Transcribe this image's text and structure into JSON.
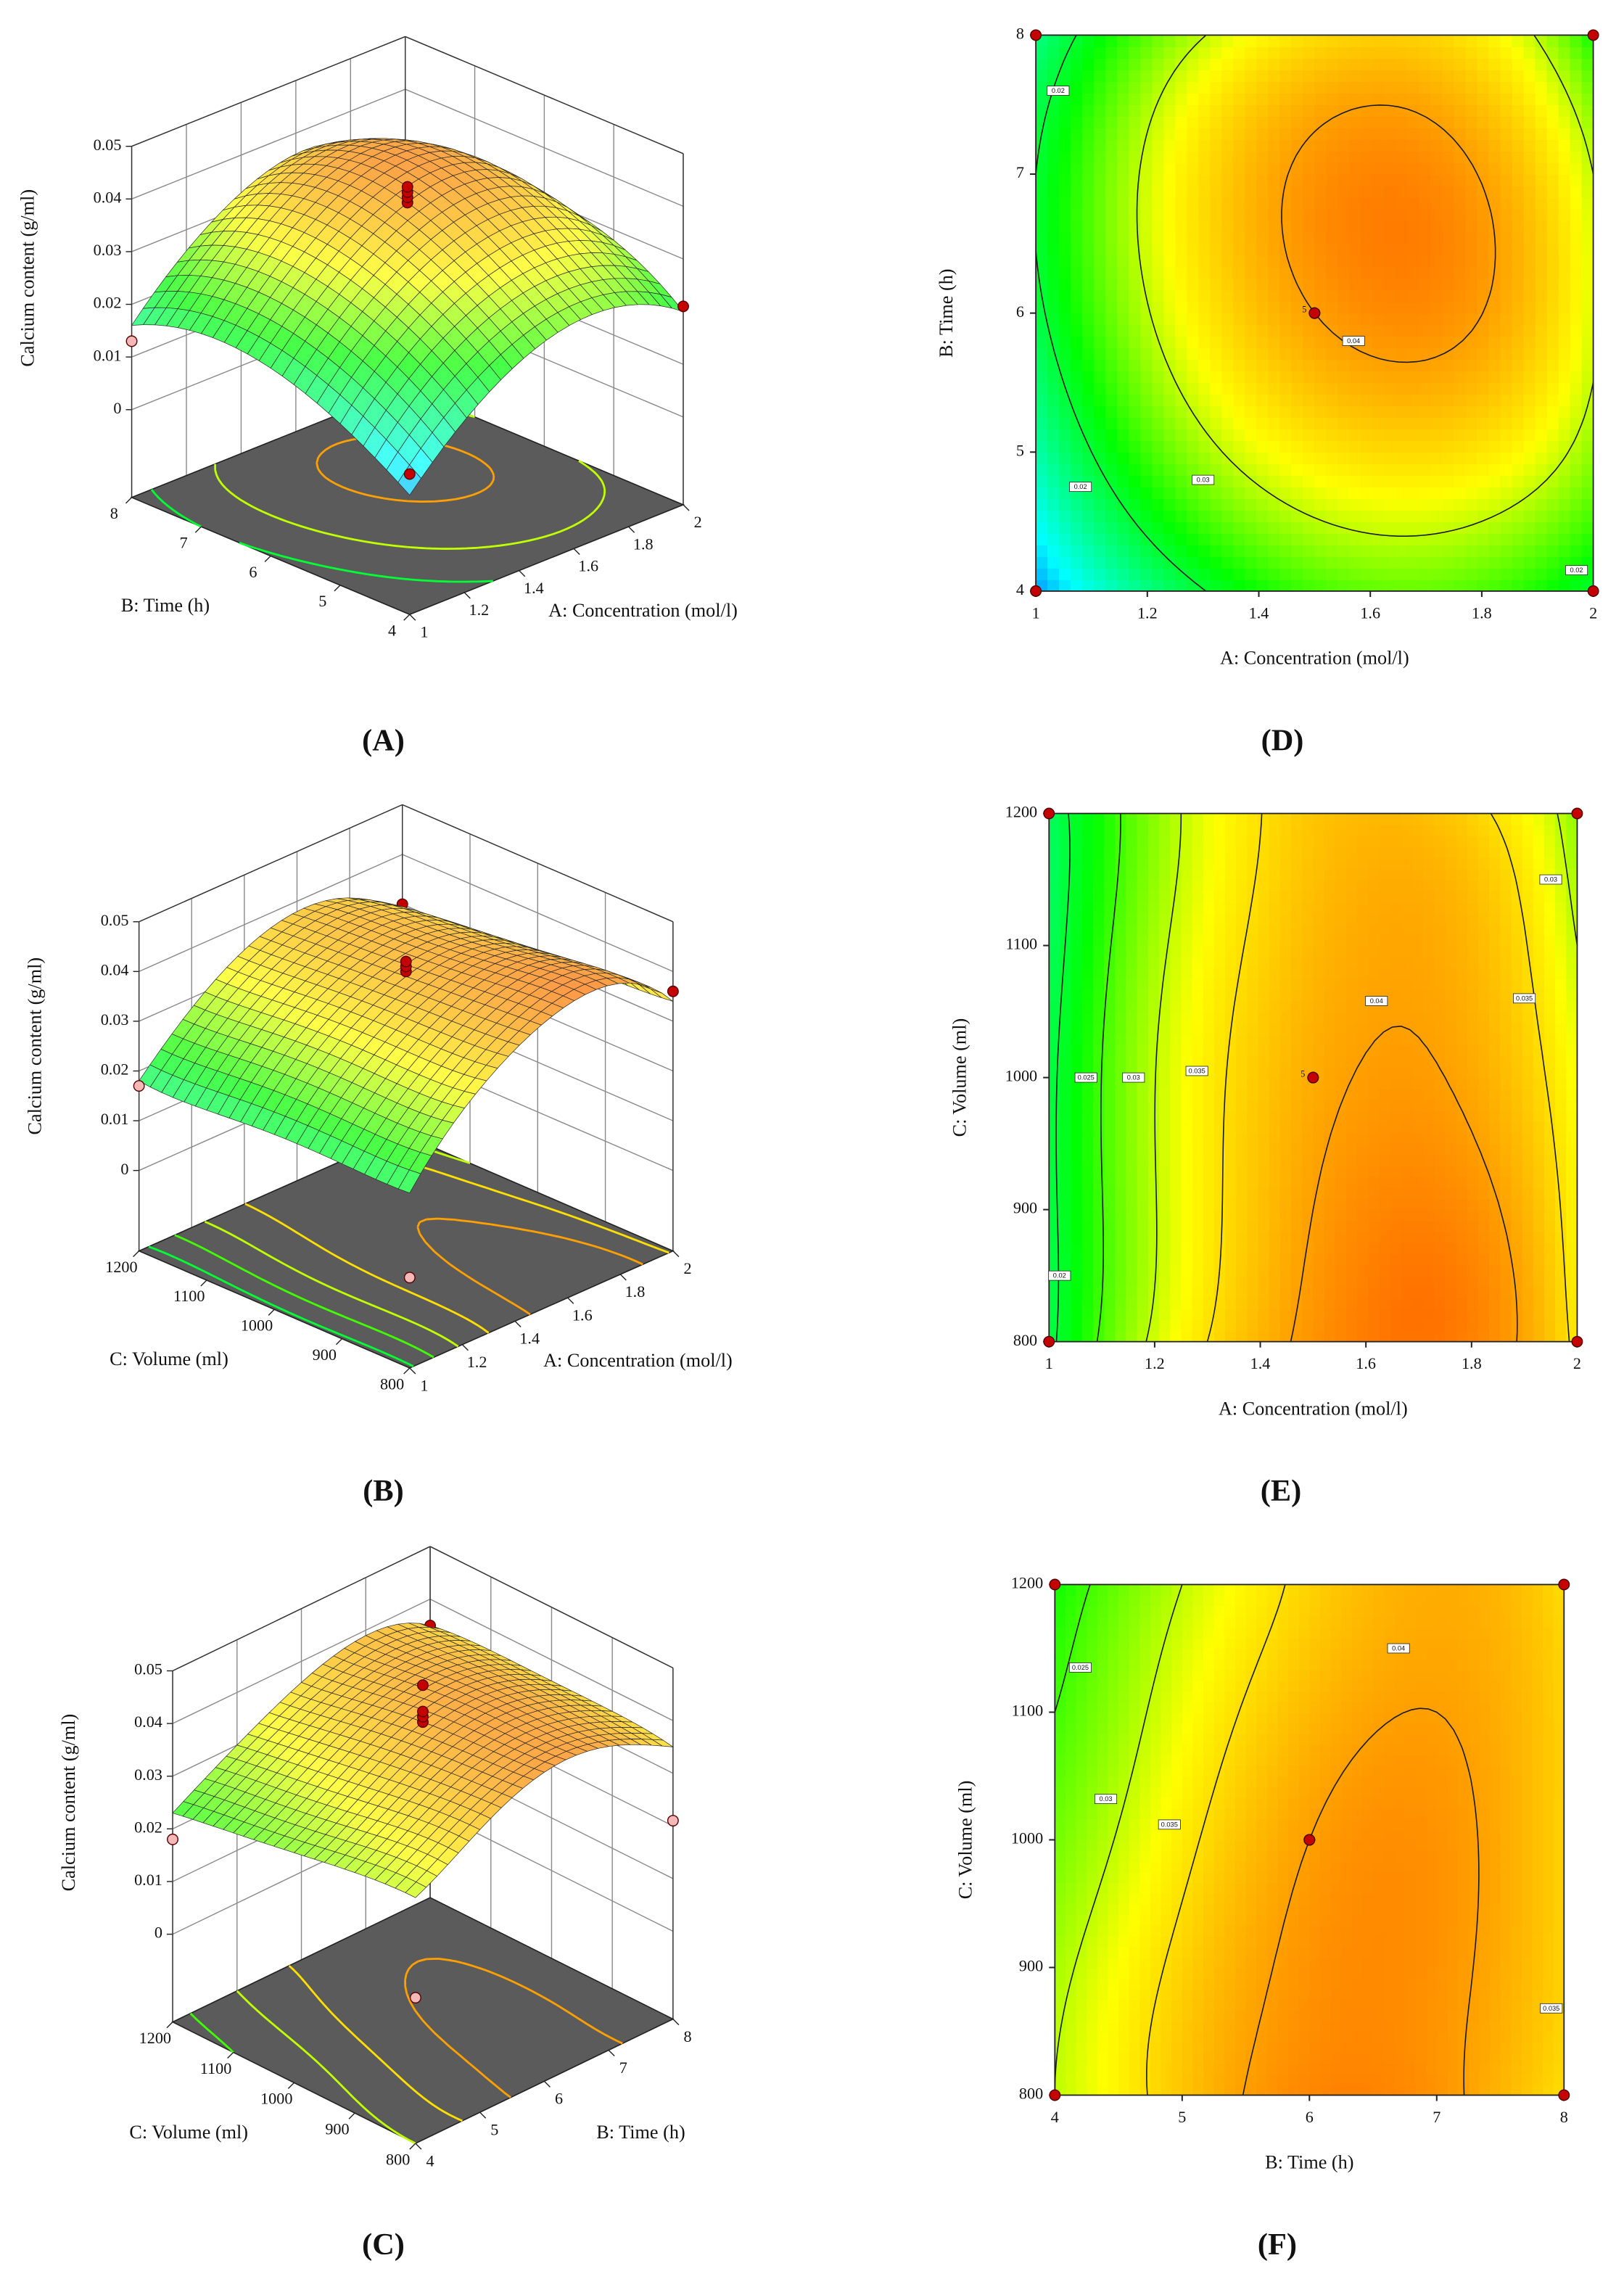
{
  "chart_data": [
    {
      "type": "surface",
      "panel_label": "(A)",
      "x_label": "A: Concentration (mol/l)",
      "y_label": "B: Time (h)",
      "z_label": "Calcium content (g/ml)",
      "xlim": [
        1,
        2
      ],
      "xticks": [
        1,
        1.2,
        1.4,
        1.6,
        1.8,
        2
      ],
      "ylim": [
        4,
        8
      ],
      "yticks": [
        4,
        5,
        6,
        7,
        8
      ],
      "zlim": [
        0,
        0.05
      ],
      "zticks": [
        0,
        0.01,
        0.02,
        0.03,
        0.04,
        0.05
      ],
      "grid_x": [
        1,
        1.25,
        1.5,
        1.75,
        2
      ],
      "grid_y": [
        4,
        5,
        6,
        7,
        8
      ],
      "z": [
        [
          0.006,
          0.018,
          0.025,
          0.026,
          0.02
        ],
        [
          0.014,
          0.027,
          0.034,
          0.035,
          0.028
        ],
        [
          0.019,
          0.032,
          0.04,
          0.041,
          0.031
        ],
        [
          0.02,
          0.033,
          0.041,
          0.041,
          0.03
        ],
        [
          0.016,
          0.028,
          0.035,
          0.035,
          0.023
        ]
      ],
      "points": {
        "x": [
          1.5,
          1.5,
          1.5,
          1.5,
          1,
          1,
          2,
          2
        ],
        "y": [
          6,
          6,
          6,
          6,
          4,
          8,
          4,
          8
        ],
        "z": [
          0.04,
          0.041,
          0.042,
          0.043,
          0.01,
          0.013,
          0.021,
          0.02
        ]
      }
    },
    {
      "type": "surface",
      "panel_label": "(B)",
      "x_label": "A: Concentration (mol/l)",
      "y_label": "C: Volume (ml)",
      "z_label": "Calcium content (g/ml)",
      "xlim": [
        1,
        2
      ],
      "xticks": [
        1,
        1.2,
        1.4,
        1.6,
        1.8,
        2
      ],
      "ylim": [
        800,
        1200
      ],
      "yticks": [
        800,
        900,
        1000,
        1100,
        1200
      ],
      "zlim": [
        0,
        0.05
      ],
      "zticks": [
        0,
        0.01,
        0.02,
        0.03,
        0.04,
        0.05
      ],
      "grid_x": [
        1,
        1.25,
        1.5,
        1.75,
        2
      ],
      "grid_y": [
        800,
        900,
        1000,
        1100,
        1200
      ],
      "z": [
        [
          0.019,
          0.033,
          0.041,
          0.043,
          0.034
        ],
        [
          0.019,
          0.032,
          0.04,
          0.042,
          0.033
        ],
        [
          0.019,
          0.032,
          0.039,
          0.04,
          0.032
        ],
        [
          0.018,
          0.031,
          0.038,
          0.039,
          0.03
        ],
        [
          0.018,
          0.03,
          0.037,
          0.037,
          0.028
        ]
      ],
      "points": {
        "x": [
          1.5,
          1.5,
          1.5,
          1,
          1,
          2,
          2
        ],
        "y": [
          1000,
          1000,
          1000,
          800,
          1200,
          800,
          1200
        ],
        "z": [
          0.04,
          0.041,
          0.042,
          0.002,
          0.017,
          0.036,
          0.03
        ]
      }
    },
    {
      "type": "surface",
      "panel_label": "(C)",
      "x_label": "B: Time (h)",
      "y_label": "C: Volume (ml)",
      "z_label": "Calcium content (g/ml)",
      "xlim": [
        4,
        8
      ],
      "xticks": [
        4,
        5,
        6,
        7,
        8
      ],
      "ylim": [
        800,
        1200
      ],
      "yticks": [
        800,
        900,
        1000,
        1100,
        1200
      ],
      "zlim": [
        0,
        0.05
      ],
      "zticks": [
        0,
        0.01,
        0.02,
        0.03,
        0.04,
        0.05
      ],
      "grid_x": [
        4,
        5,
        6,
        7,
        8
      ],
      "grid_y": [
        800,
        900,
        1000,
        1100,
        1200
      ],
      "z": [
        [
          0.03,
          0.037,
          0.042,
          0.041,
          0.035
        ],
        [
          0.029,
          0.036,
          0.041,
          0.041,
          0.036
        ],
        [
          0.027,
          0.034,
          0.04,
          0.041,
          0.036
        ],
        [
          0.025,
          0.032,
          0.038,
          0.04,
          0.036
        ],
        [
          0.023,
          0.03,
          0.036,
          0.039,
          0.035
        ]
      ],
      "points": {
        "x": [
          6,
          6,
          6,
          6,
          4,
          4,
          8,
          8
        ],
        "y": [
          1000,
          1000,
          1000,
          1000,
          800,
          1200,
          800,
          1200
        ],
        "z": [
          0.04,
          0.041,
          0.042,
          0.047,
          0.011,
          0.018,
          0.021,
          0.035
        ]
      }
    },
    {
      "type": "contour",
      "panel_label": "(D)",
      "x_label": "A: Concentration (mol/l)",
      "y_label": "B: Time (h)",
      "xlim": [
        1,
        2
      ],
      "xticks": [
        1,
        1.2,
        1.4,
        1.6,
        1.8,
        2
      ],
      "ylim": [
        4,
        8
      ],
      "yticks": [
        4,
        5,
        6,
        7,
        8
      ],
      "levels": [
        0.02,
        0.03,
        0.04
      ],
      "contour_labels": {
        "values": [
          0.02,
          0.02,
          0.03,
          0.04,
          0.02
        ],
        "x": [
          1.04,
          1.08,
          1.3,
          1.57,
          1.97
        ],
        "y": [
          7.6,
          4.75,
          4.8,
          5.8,
          4.15
        ]
      },
      "replicate_label": "5"
    },
    {
      "type": "contour",
      "panel_label": "(E)",
      "x_label": "A: Concentration (mol/l)",
      "y_label": "C: Volume (ml)",
      "xlim": [
        1,
        2
      ],
      "xticks": [
        1,
        1.2,
        1.4,
        1.6,
        1.8,
        2
      ],
      "ylim": [
        800,
        1200
      ],
      "yticks": [
        800,
        900,
        1000,
        1100,
        1200
      ],
      "levels": [
        0.02,
        0.025,
        0.03,
        0.035,
        0.04
      ],
      "contour_labels": {
        "values": [
          0.025,
          0.03,
          0.035,
          0.04,
          0.035,
          0.03,
          0.02
        ],
        "x": [
          1.07,
          1.16,
          1.28,
          1.62,
          1.9,
          1.95,
          1.02
        ],
        "y": [
          1000,
          1000,
          1005,
          1058,
          1060,
          1150,
          850
        ]
      },
      "replicate_label": "5"
    },
    {
      "type": "contour",
      "panel_label": "(F)",
      "x_label": "B: Time (h)",
      "y_label": "C: Volume (ml)",
      "xlim": [
        4,
        8
      ],
      "xticks": [
        4,
        5,
        6,
        7,
        8
      ],
      "ylim": [
        800,
        1200
      ],
      "yticks": [
        800,
        900,
        1000,
        1100,
        1200
      ],
      "levels": [
        0.025,
        0.03,
        0.035,
        0.04
      ],
      "contour_labels": {
        "values": [
          0.025,
          0.03,
          0.035,
          0.04,
          0.035
        ],
        "x": [
          4.2,
          4.4,
          4.9,
          6.7,
          7.9
        ],
        "y": [
          1135,
          1032,
          1012,
          1150,
          868
        ]
      }
    }
  ]
}
